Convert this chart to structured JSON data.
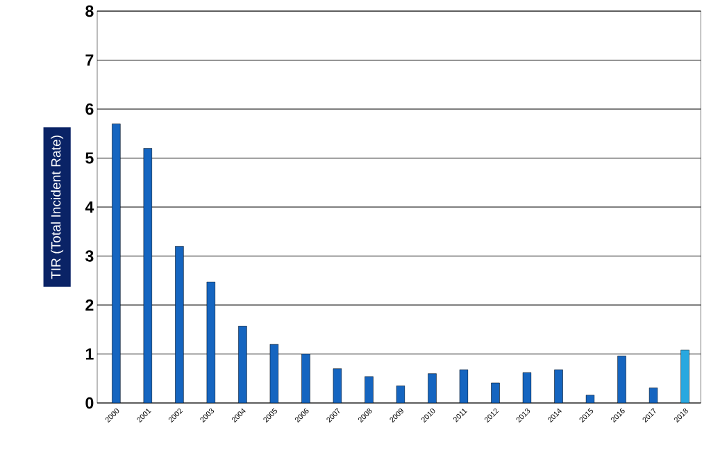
{
  "chart_data": {
    "type": "bar",
    "ylabel": "TIR (Total Incident Rate)",
    "categories": [
      "2000",
      "2001",
      "2002",
      "2003",
      "2004",
      "2005",
      "2006",
      "2007",
      "2008",
      "2009",
      "2010",
      "2011",
      "2012",
      "2013",
      "2014",
      "2015",
      "2016",
      "2017",
      "2018"
    ],
    "values": [
      5.7,
      5.2,
      3.2,
      2.47,
      1.57,
      1.2,
      1.0,
      0.7,
      0.54,
      0.35,
      0.6,
      0.68,
      0.41,
      0.62,
      0.68,
      0.16,
      0.96,
      0.31,
      1.08
    ],
    "colors": [
      "#1565c0",
      "#1565c0",
      "#1565c0",
      "#1565c0",
      "#1565c0",
      "#1565c0",
      "#1565c0",
      "#1565c0",
      "#1565c0",
      "#1565c0",
      "#1565c0",
      "#1565c0",
      "#1565c0",
      "#1565c0",
      "#1565c0",
      "#1565c0",
      "#1565c0",
      "#1565c0",
      "#29a8e0"
    ],
    "ylim": [
      0,
      8
    ],
    "yticks": [
      0,
      1,
      2,
      3,
      4,
      5,
      6,
      7,
      8
    ],
    "grid": "y"
  }
}
